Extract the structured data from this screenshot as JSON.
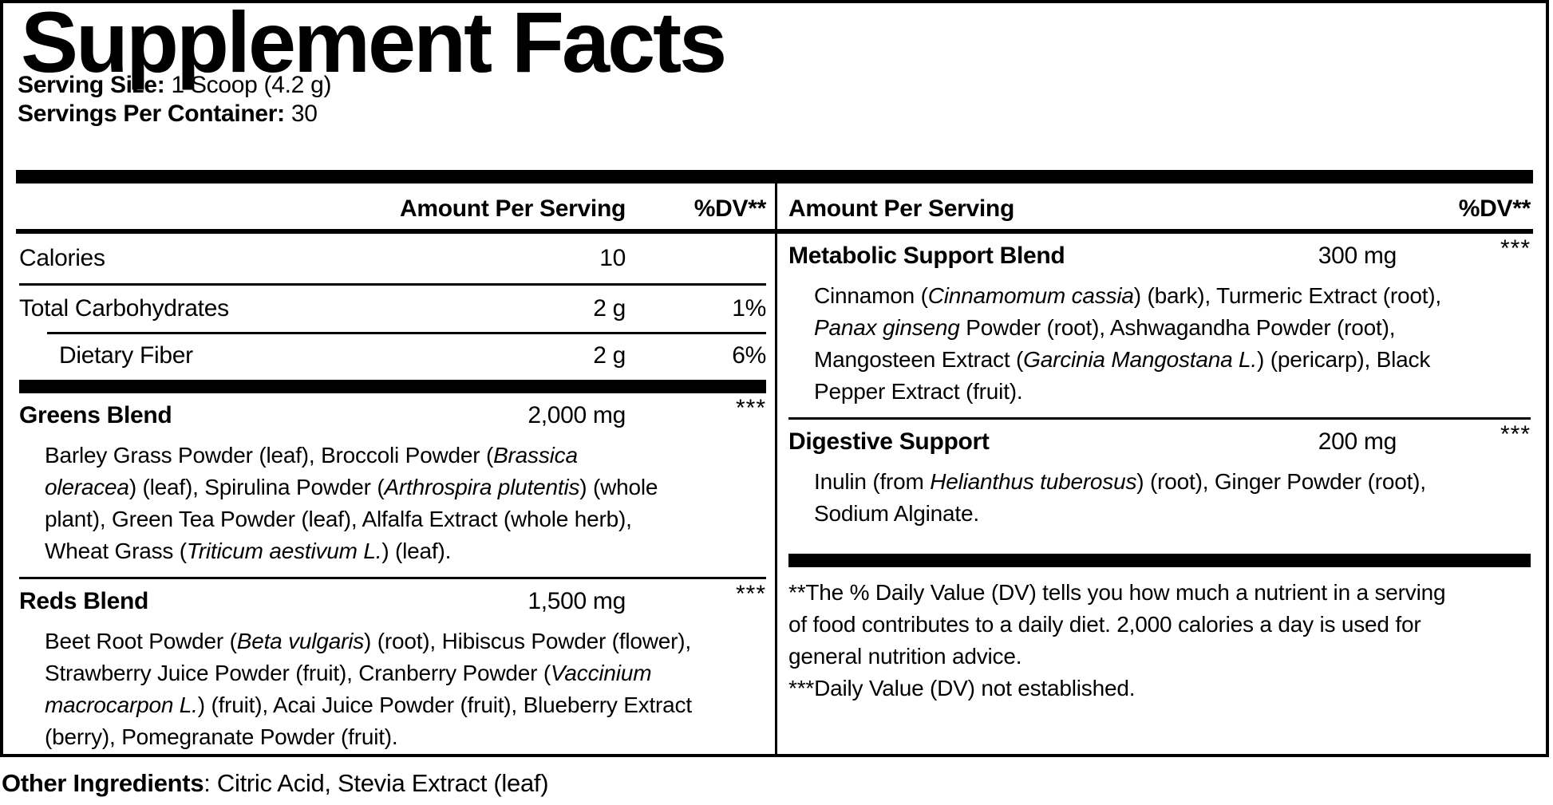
{
  "colors": {
    "ink": "#000000",
    "paper": "#ffffff"
  },
  "title": "Supplement Facts",
  "serving": {
    "size_label": "Serving Size:",
    "size_value": " 1 Scoop (4.2 g)",
    "per_container_label": "Servings Per Container:",
    "per_container_value": " 30"
  },
  "table": {
    "header": {
      "amount_label": "Amount Per Serving",
      "dv_label": "%DV**"
    },
    "left": {
      "nutrients": [
        {
          "name": "Calories",
          "amount": "10",
          "dv": ""
        },
        {
          "name": "Total Carbohydrates",
          "amount": "2 g",
          "dv": "1%"
        },
        {
          "name": "Dietary Fiber",
          "amount": "2 g",
          "dv": "6%"
        }
      ],
      "blends": [
        {
          "name": "Greens Blend",
          "amount": "2,000 mg",
          "dv": "***",
          "ingredients": [
            {
              "t": "Barley Grass Powder (leaf), Broccoli Powder ("
            },
            {
              "t": "Brassica",
              "i": true
            },
            {
              "br": true
            },
            {
              "t": "oleracea",
              "i": true
            },
            {
              "t": ") (leaf), Spirulina Powder ("
            },
            {
              "t": "Arthrospira plutentis",
              "i": true
            },
            {
              "t": ") (whole"
            },
            {
              "br": true
            },
            {
              "t": "plant), Green Tea Powder (leaf), Alfalfa Extract (whole herb),"
            },
            {
              "br": true
            },
            {
              "t": "Wheat Grass ("
            },
            {
              "t": "Triticum aestivum L.",
              "i": true
            },
            {
              "t": ") (leaf)."
            }
          ]
        },
        {
          "name": "Reds Blend",
          "amount": "1,500 mg",
          "dv": "***",
          "ingredients": [
            {
              "t": "Beet Root Powder ("
            },
            {
              "t": "Beta vulgaris",
              "i": true
            },
            {
              "t": ") (root), Hibiscus Powder (flower),"
            },
            {
              "br": true
            },
            {
              "t": "Strawberry Juice Powder (fruit), Cranberry Powder ("
            },
            {
              "t": "Vaccinium",
              "i": true
            },
            {
              "br": true
            },
            {
              "t": "macrocarpon L.",
              "i": true
            },
            {
              "t": ") (fruit), Acai Juice Powder (fruit), Blueberry Extract"
            },
            {
              "br": true
            },
            {
              "t": "(berry), Pomegranate Powder (fruit)."
            }
          ]
        }
      ]
    },
    "right": {
      "blends": [
        {
          "name": "Metabolic Support Blend",
          "amount": "300 mg",
          "dv": "***",
          "ingredients": [
            {
              "t": "Cinnamon ("
            },
            {
              "t": "Cinnamomum cassia",
              "i": true
            },
            {
              "t": ") (bark), Turmeric Extract (root),"
            },
            {
              "br": true
            },
            {
              "t": "Panax ginseng",
              "i": true
            },
            {
              "t": " Powder (root), Ashwagandha Powder (root),"
            },
            {
              "br": true
            },
            {
              "t": "Mangosteen Extract ("
            },
            {
              "t": "Garcinia Mangostana L.",
              "i": true
            },
            {
              "t": ") (pericarp), Black"
            },
            {
              "br": true
            },
            {
              "t": "Pepper Extract (fruit)."
            }
          ]
        },
        {
          "name": "Digestive Support",
          "amount": "200 mg",
          "dv": "***",
          "ingredients": [
            {
              "t": "Inulin (from "
            },
            {
              "t": "Helianthus tuberosus",
              "i": true
            },
            {
              "t": ") (root), Ginger Powder (root),"
            },
            {
              "br": true
            },
            {
              "t": "Sodium Alginate."
            }
          ]
        }
      ],
      "footnotes": [
        [
          {
            "t": "**The % Daily Value (DV) tells you how much a nutrient in a serving"
          },
          {
            "br": true
          },
          {
            "t": "of food contributes to a daily diet. 2,000 calories a day is used for"
          },
          {
            "br": true
          },
          {
            "t": "general nutrition advice."
          }
        ],
        [
          {
            "t": "***Daily Value (DV) not established."
          }
        ]
      ]
    }
  },
  "other_ingredients": {
    "label": "Other Ingredients",
    "value": ": Citric Acid, Stevia Extract (leaf)"
  }
}
